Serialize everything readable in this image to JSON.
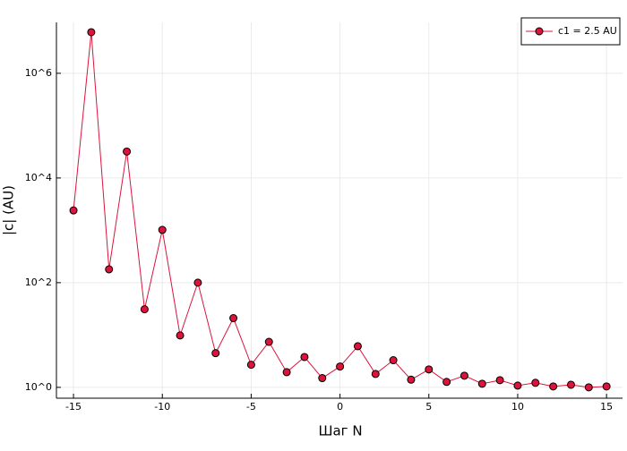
{
  "chart_data": {
    "type": "line",
    "x_label": "Шаг N",
    "y_label": "|c| (AU)",
    "x": [
      -15,
      -14,
      -13,
      -12,
      -11,
      -10,
      -9,
      -8,
      -7,
      -6,
      -5,
      -4,
      -3,
      -2,
      -1,
      0,
      1,
      2,
      3,
      4,
      5,
      6,
      7,
      8,
      9,
      10,
      11,
      12,
      13,
      14,
      15
    ],
    "series": [
      {
        "name": "c1 = 2.5 AU",
        "color": "#dc143c",
        "values": [
          2400,
          6100000,
          180,
          32000,
          31,
          1020,
          9.8,
          100,
          4.5,
          21,
          2.7,
          7.4,
          1.95,
          3.8,
          1.5,
          2.5,
          6.1,
          1.8,
          3.3,
          1.4,
          2.2,
          1.27,
          1.67,
          1.17,
          1.37,
          1.08,
          1.22,
          1.04,
          1.12,
          1.0,
          1.04
        ]
      }
    ],
    "xlim": [
      -15.96,
      15.9
    ],
    "ylim": [
      0.62,
      9400000
    ],
    "xticks": [
      -15,
      -10,
      -5,
      0,
      5,
      10,
      15
    ],
    "yticks": [
      {
        "value": 1,
        "label": "10^0"
      },
      {
        "value": 100,
        "label": "10^2"
      },
      {
        "value": 10000,
        "label": "10^4"
      },
      {
        "value": 1000000,
        "label": "10^6"
      }
    ],
    "log_y": true,
    "grid": true,
    "legend": "top-right"
  }
}
